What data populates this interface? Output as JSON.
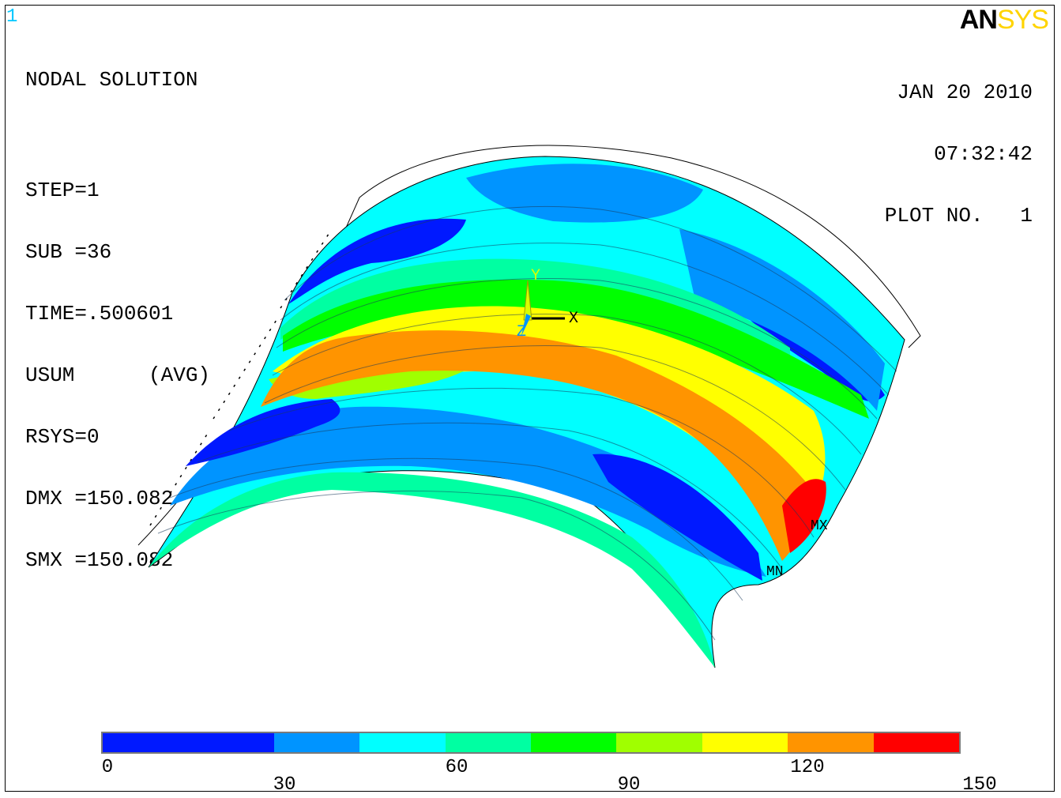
{
  "window_number": "1",
  "logo": {
    "part1": "AN",
    "part2": "SYS"
  },
  "info": {
    "title": "NODAL SOLUTION",
    "step": "STEP=1",
    "sub": "SUB =36",
    "time": "TIME=.500601",
    "usum": "USUM      (AVG)",
    "rsys": "RSYS=0",
    "dmx": "DMX =150.082",
    "smx": "SMX =150.082"
  },
  "header_right": {
    "date": "JAN 20 2010",
    "time": "07:32:42",
    "plot": "PLOT NO.   1"
  },
  "triad": {
    "x": "X",
    "y": "Y",
    "z": "Z"
  },
  "markers": {
    "max": "MX",
    "min": "MN"
  },
  "colors": {
    "bands": [
      "#0019ff",
      "#0094ff",
      "#00ffff",
      "#00ffa2",
      "#00ff00",
      "#a0ff00",
      "#ffff00",
      "#ff9400",
      "#ff0000"
    ],
    "logo_yellow": "#ffd400",
    "window_number": "#00c8ff"
  },
  "legend": {
    "values": [
      "0",
      "30",
      "60",
      "90",
      "120",
      "150"
    ]
  }
}
